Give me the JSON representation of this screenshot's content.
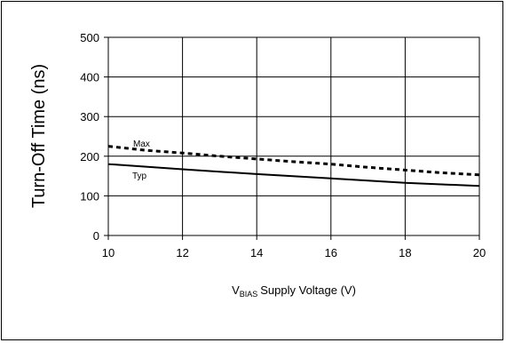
{
  "chart_data": {
    "type": "line",
    "xlabel_prefix": "V",
    "xlabel_sub": "BIAS",
    "xlabel_rest": "Supply Voltage (V)",
    "ylabel": "Turn-Off Time (ns)",
    "xlim": [
      10,
      20
    ],
    "ylim": [
      0,
      500
    ],
    "x_ticks": [
      "10",
      "12",
      "14",
      "16",
      "18",
      "20"
    ],
    "y_ticks": [
      "0",
      "100",
      "200",
      "300",
      "400",
      "500"
    ],
    "grid": true,
    "series": [
      {
        "name": "Max",
        "style": "dashed",
        "color": "#000000",
        "x": [
          10,
          11,
          12,
          13,
          14,
          15,
          16,
          17,
          18,
          19,
          20
        ],
        "y": [
          225,
          215,
          208,
          200,
          193,
          186,
          180,
          172,
          165,
          158,
          153
        ]
      },
      {
        "name": "Typ",
        "style": "solid",
        "color": "#000000",
        "x": [
          10,
          12,
          14,
          16,
          18,
          20
        ],
        "y": [
          180,
          167,
          155,
          144,
          133,
          125
        ]
      }
    ],
    "annotations": {
      "max_label": "Max",
      "typ_label": "Typ"
    }
  }
}
